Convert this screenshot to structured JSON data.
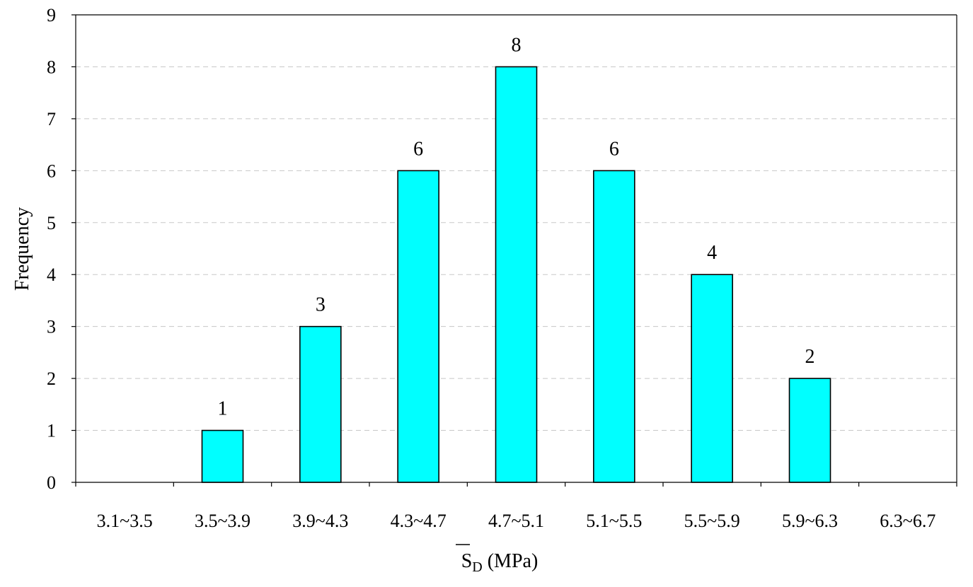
{
  "chart_data": {
    "type": "bar",
    "categories": [
      "3.1~3.5",
      "3.5~3.9",
      "3.9~4.3",
      "4.3~4.7",
      "4.7~5.1",
      "5.1~5.5",
      "5.5~5.9",
      "5.9~6.3",
      "6.3~6.7"
    ],
    "values": [
      0,
      1,
      3,
      6,
      8,
      6,
      4,
      2,
      0
    ],
    "data_labels": [
      "",
      "1",
      "3",
      "6",
      "8",
      "6",
      "4",
      "2",
      ""
    ],
    "ylabel": "Frequency",
    "xlabel": {
      "main": "S",
      "subscript": "D",
      "unit": " (MPa)"
    },
    "ylim": [
      0,
      9
    ],
    "yticks": [
      "0",
      "1",
      "2",
      "3",
      "4",
      "5",
      "6",
      "7",
      "8",
      "9"
    ],
    "grid": true,
    "bar_color": "#00ffff",
    "bar_edge_color": "#000000",
    "grid_color": "#c8c8c8"
  }
}
